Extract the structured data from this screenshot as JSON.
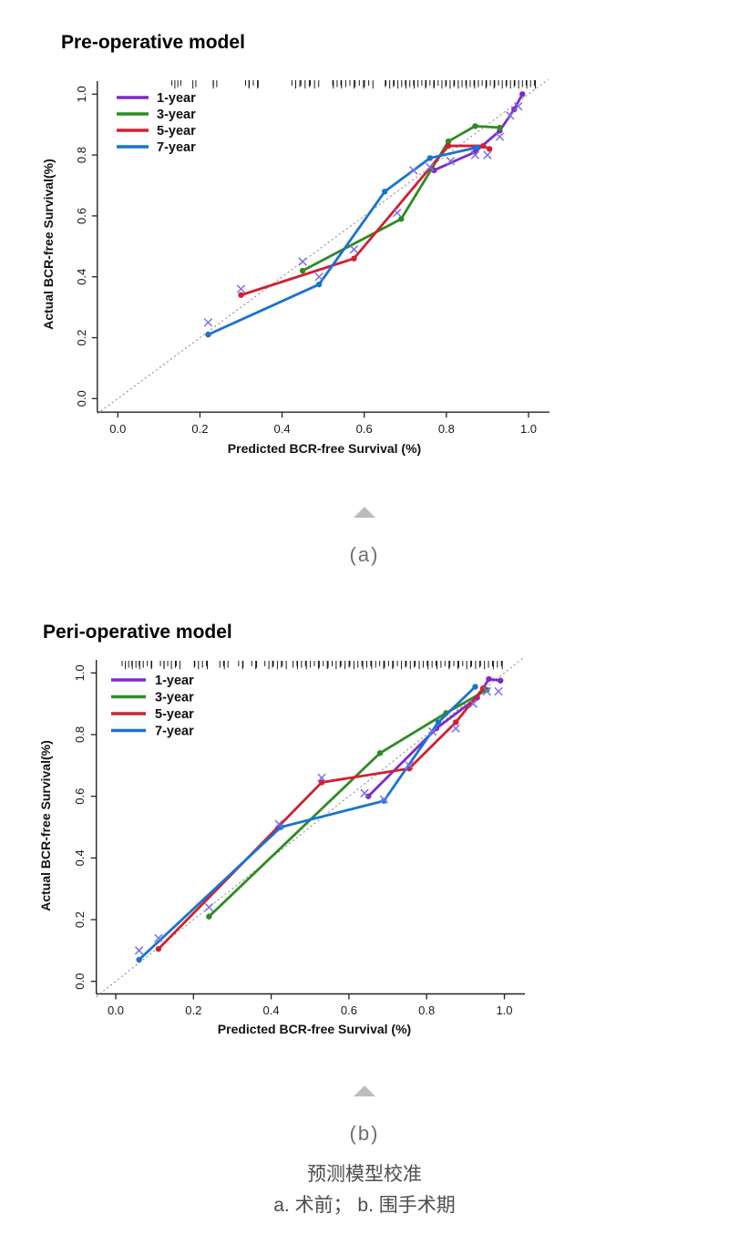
{
  "page": {
    "background": "#ffffff"
  },
  "figures": [
    {
      "label": "(a)",
      "collapse_marker": "triangle-up-icon"
    },
    {
      "label": "(b)",
      "collapse_marker": "triangle-up-icon"
    }
  ],
  "caption": {
    "line1": "预测模型校准",
    "line2": "a. 术前； b. 围手术期"
  },
  "colors": {
    "series_1yr": "#7D2BC8",
    "series_3yr": "#2E8B22",
    "series_5yr": "#D21F32",
    "series_7yr": "#1874CD",
    "bias_marks": "#7B6FEF",
    "reference_line": "#808080",
    "rug": "#000000",
    "caption_gray": "#6f6f6f",
    "triangle_gray": "#bcbcbc"
  },
  "chart_data": [
    {
      "type": "line",
      "title": "Pre-operative model",
      "xlabel": "Predicted BCR-free Survival (%)",
      "ylabel": "Actual BCR-free Survival(%)",
      "xlim": [
        -0.05,
        1.05
      ],
      "ylim": [
        -0.05,
        1.05
      ],
      "xticks": [
        "0.0",
        "0.2",
        "0.4",
        "0.6",
        "0.8",
        "1.0"
      ],
      "yticks": [
        "0.0",
        "0.2",
        "0.4",
        "0.6",
        "0.8",
        "1.0"
      ],
      "grid": false,
      "legend_position": "top-left",
      "reference_line": "y=x dotted ideal line",
      "series": [
        {
          "name": "1-year",
          "color": "#7D2BC8",
          "points": [
            [
              0.77,
              0.75
            ],
            [
              0.87,
              0.81
            ],
            [
              0.93,
              0.88
            ],
            [
              0.965,
              0.95
            ],
            [
              0.985,
              1.0
            ]
          ]
        },
        {
          "name": "3-year",
          "color": "#2E8B22",
          "points": [
            [
              0.45,
              0.42
            ],
            [
              0.69,
              0.59
            ],
            [
              0.805,
              0.845
            ],
            [
              0.87,
              0.895
            ],
            [
              0.93,
              0.89
            ]
          ]
        },
        {
          "name": "5-year",
          "color": "#D21F32",
          "points": [
            [
              0.3,
              0.34
            ],
            [
              0.575,
              0.46
            ],
            [
              0.805,
              0.83
            ],
            [
              0.89,
              0.83
            ],
            [
              0.905,
              0.82
            ]
          ]
        },
        {
          "name": "7-year",
          "color": "#1874CD",
          "points": [
            [
              0.22,
              0.21
            ],
            [
              0.49,
              0.375
            ],
            [
              0.65,
              0.68
            ],
            [
              0.76,
              0.79
            ],
            [
              0.875,
              0.825
            ]
          ]
        }
      ],
      "bias_corrected_marks": {
        "symbol": "x",
        "color": "#7B6FEF",
        "points": [
          [
            0.22,
            0.25
          ],
          [
            0.3,
            0.36
          ],
          [
            0.45,
            0.45
          ],
          [
            0.49,
            0.4
          ],
          [
            0.575,
            0.49
          ],
          [
            0.68,
            0.61
          ],
          [
            0.72,
            0.75
          ],
          [
            0.76,
            0.76
          ],
          [
            0.81,
            0.78
          ],
          [
            0.87,
            0.8
          ],
          [
            0.9,
            0.8
          ],
          [
            0.93,
            0.86
          ],
          [
            0.955,
            0.93
          ],
          [
            0.975,
            0.96
          ]
        ]
      },
      "rug_x": [
        0.135,
        0.14,
        0.145,
        0.15,
        0.185,
        0.19,
        0.23,
        0.236,
        0.242,
        0.31,
        0.316,
        0.322,
        0.33,
        0.338,
        0.345,
        0.425,
        0.432,
        0.44,
        0.448,
        0.456,
        0.464,
        0.472,
        0.48,
        0.488,
        0.52,
        0.527,
        0.534,
        0.541,
        0.548,
        0.556,
        0.564,
        0.572,
        0.58,
        0.588,
        0.596,
        0.604,
        0.612,
        0.62,
        0.648,
        0.655,
        0.662,
        0.669,
        0.676,
        0.683,
        0.69,
        0.697,
        0.704,
        0.711,
        0.718,
        0.725,
        0.732,
        0.739,
        0.746,
        0.753,
        0.76,
        0.767,
        0.774,
        0.781,
        0.788,
        0.795,
        0.802,
        0.809,
        0.816,
        0.823,
        0.83,
        0.837,
        0.844,
        0.851,
        0.858,
        0.865,
        0.872,
        0.879,
        0.886,
        0.893,
        0.9,
        0.907,
        0.914,
        0.921,
        0.928,
        0.935,
        0.942,
        0.949,
        0.956,
        0.963,
        0.97,
        0.977,
        0.984,
        0.991,
        0.998,
        1.005,
        1.012,
        1.02
      ]
    },
    {
      "type": "line",
      "title": "Peri-operative model",
      "xlabel": "Predicted BCR-free Survival (%)",
      "ylabel": "Actual BCR-free Survival(%)",
      "xlim": [
        -0.05,
        1.05
      ],
      "ylim": [
        -0.05,
        1.05
      ],
      "xticks": [
        "0.0",
        "0.2",
        "0.4",
        "0.6",
        "0.8",
        "1.0"
      ],
      "yticks": [
        "0.0",
        "0.2",
        "0.4",
        "0.6",
        "0.8",
        "1.0"
      ],
      "grid": false,
      "legend_position": "top-left",
      "reference_line": "y=x dotted ideal line",
      "series": [
        {
          "name": "1-year",
          "color": "#7D2BC8",
          "points": [
            [
              0.65,
              0.6
            ],
            [
              0.825,
              0.82
            ],
            [
              0.93,
              0.92
            ],
            [
              0.96,
              0.98
            ],
            [
              0.99,
              0.975
            ]
          ]
        },
        {
          "name": "3-year",
          "color": "#2E8B22",
          "points": [
            [
              0.24,
              0.21
            ],
            [
              0.68,
              0.74
            ],
            [
              0.85,
              0.87
            ],
            [
              0.955,
              0.945
            ]
          ]
        },
        {
          "name": "5-year",
          "color": "#D21F32",
          "points": [
            [
              0.11,
              0.105
            ],
            [
              0.53,
              0.645
            ],
            [
              0.755,
              0.69
            ],
            [
              0.875,
              0.84
            ],
            [
              0.945,
              0.95
            ]
          ]
        },
        {
          "name": "7-year",
          "color": "#1874CD",
          "points": [
            [
              0.06,
              0.07
            ],
            [
              0.425,
              0.5
            ],
            [
              0.69,
              0.585
            ],
            [
              0.83,
              0.84
            ],
            [
              0.925,
              0.955
            ]
          ]
        }
      ],
      "bias_corrected_marks": {
        "symbol": "x",
        "color": "#7B6FEF",
        "points": [
          [
            0.06,
            0.1
          ],
          [
            0.11,
            0.14
          ],
          [
            0.24,
            0.24
          ],
          [
            0.42,
            0.51
          ],
          [
            0.53,
            0.66
          ],
          [
            0.64,
            0.61
          ],
          [
            0.69,
            0.59
          ],
          [
            0.755,
            0.7
          ],
          [
            0.815,
            0.81
          ],
          [
            0.875,
            0.82
          ],
          [
            0.92,
            0.9
          ],
          [
            0.955,
            0.94
          ],
          [
            0.985,
            0.94
          ]
        ]
      },
      "rug_x": [
        0.02,
        0.026,
        0.032,
        0.038,
        0.045,
        0.052,
        0.058,
        0.065,
        0.072,
        0.08,
        0.088,
        0.095,
        0.115,
        0.122,
        0.128,
        0.135,
        0.142,
        0.15,
        0.158,
        0.165,
        0.2,
        0.207,
        0.214,
        0.222,
        0.23,
        0.238,
        0.268,
        0.275,
        0.283,
        0.29,
        0.315,
        0.323,
        0.33,
        0.35,
        0.358,
        0.366,
        0.385,
        0.393,
        0.4,
        0.408,
        0.416,
        0.424,
        0.432,
        0.44,
        0.455,
        0.463,
        0.47,
        0.478,
        0.486,
        0.494,
        0.502,
        0.51,
        0.518,
        0.526,
        0.534,
        0.542,
        0.55,
        0.558,
        0.566,
        0.574,
        0.582,
        0.59,
        0.598,
        0.606,
        0.614,
        0.622,
        0.63,
        0.638,
        0.646,
        0.654,
        0.662,
        0.67,
        0.678,
        0.686,
        0.694,
        0.702,
        0.71,
        0.718,
        0.726,
        0.734,
        0.742,
        0.75,
        0.758,
        0.766,
        0.774,
        0.782,
        0.79,
        0.798,
        0.806,
        0.814,
        0.822,
        0.83,
        0.838,
        0.846,
        0.854,
        0.862,
        0.87,
        0.878,
        0.886,
        0.894,
        0.902,
        0.91,
        0.918,
        0.926,
        0.934,
        0.942,
        0.95,
        0.958,
        0.966,
        0.974,
        0.982,
        0.99,
        0.998
      ]
    }
  ]
}
